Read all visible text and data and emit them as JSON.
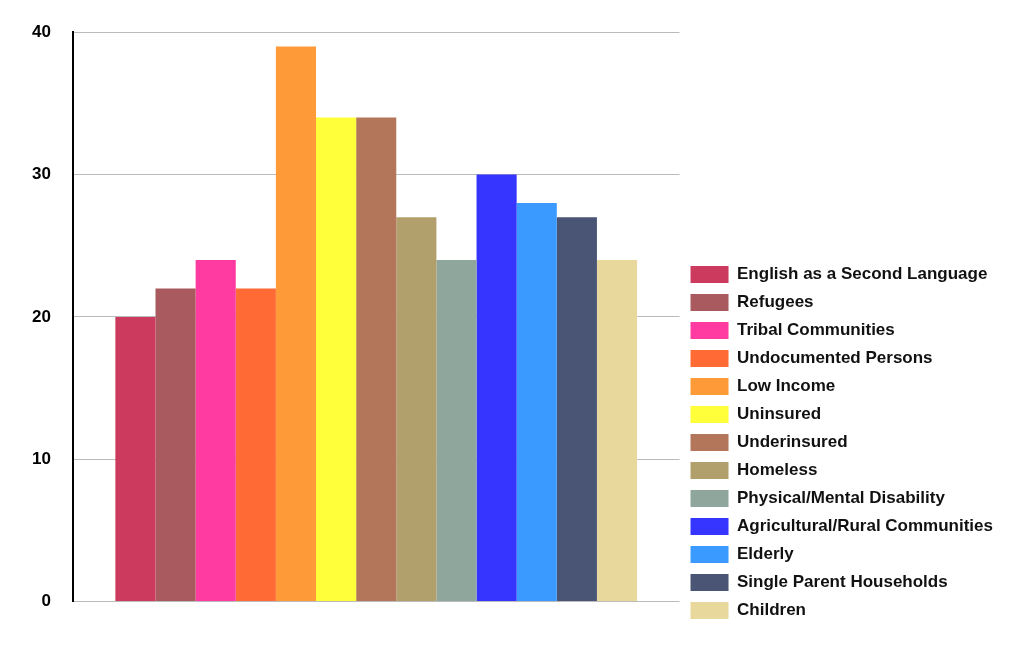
{
  "chart_data": {
    "type": "bar",
    "categories": [
      null
    ],
    "series": [
      {
        "name": "English as a Second Language",
        "color": "#cc3a5e",
        "values": [
          20
        ]
      },
      {
        "name": "Refugees",
        "color": "#a85a5e",
        "values": [
          22
        ]
      },
      {
        "name": "Tribal Communities",
        "color": "#ff3aa0",
        "values": [
          24
        ]
      },
      {
        "name": "Undocumented Persons",
        "color": "#ff6a35",
        "values": [
          22
        ]
      },
      {
        "name": "Low Income",
        "color": "#ff9a38",
        "values": [
          39
        ]
      },
      {
        "name": "Uninsured",
        "color": "#ffff3a",
        "values": [
          34
        ]
      },
      {
        "name": "Underinsured",
        "color": "#b4765a",
        "values": [
          34
        ]
      },
      {
        "name": "Homeless",
        "color": "#b2a06c",
        "values": [
          27
        ]
      },
      {
        "name": "Physical/Mental Disability",
        "color": "#8ea69c",
        "values": [
          24
        ]
      },
      {
        "name": "Agricultural/Rural Communities",
        "color": "#3535ff",
        "values": [
          30
        ]
      },
      {
        "name": "Elderly",
        "color": "#3a9aff",
        "values": [
          28
        ]
      },
      {
        "name": "Single Parent Households",
        "color": "#4a5474",
        "values": [
          27
        ]
      },
      {
        "name": "Children",
        "color": "#e8d89c",
        "values": [
          24
        ]
      }
    ],
    "ylim": [
      0,
      40
    ],
    "yticks": [
      0,
      10,
      20,
      30,
      40
    ],
    "grid": "y",
    "legend": "right"
  }
}
